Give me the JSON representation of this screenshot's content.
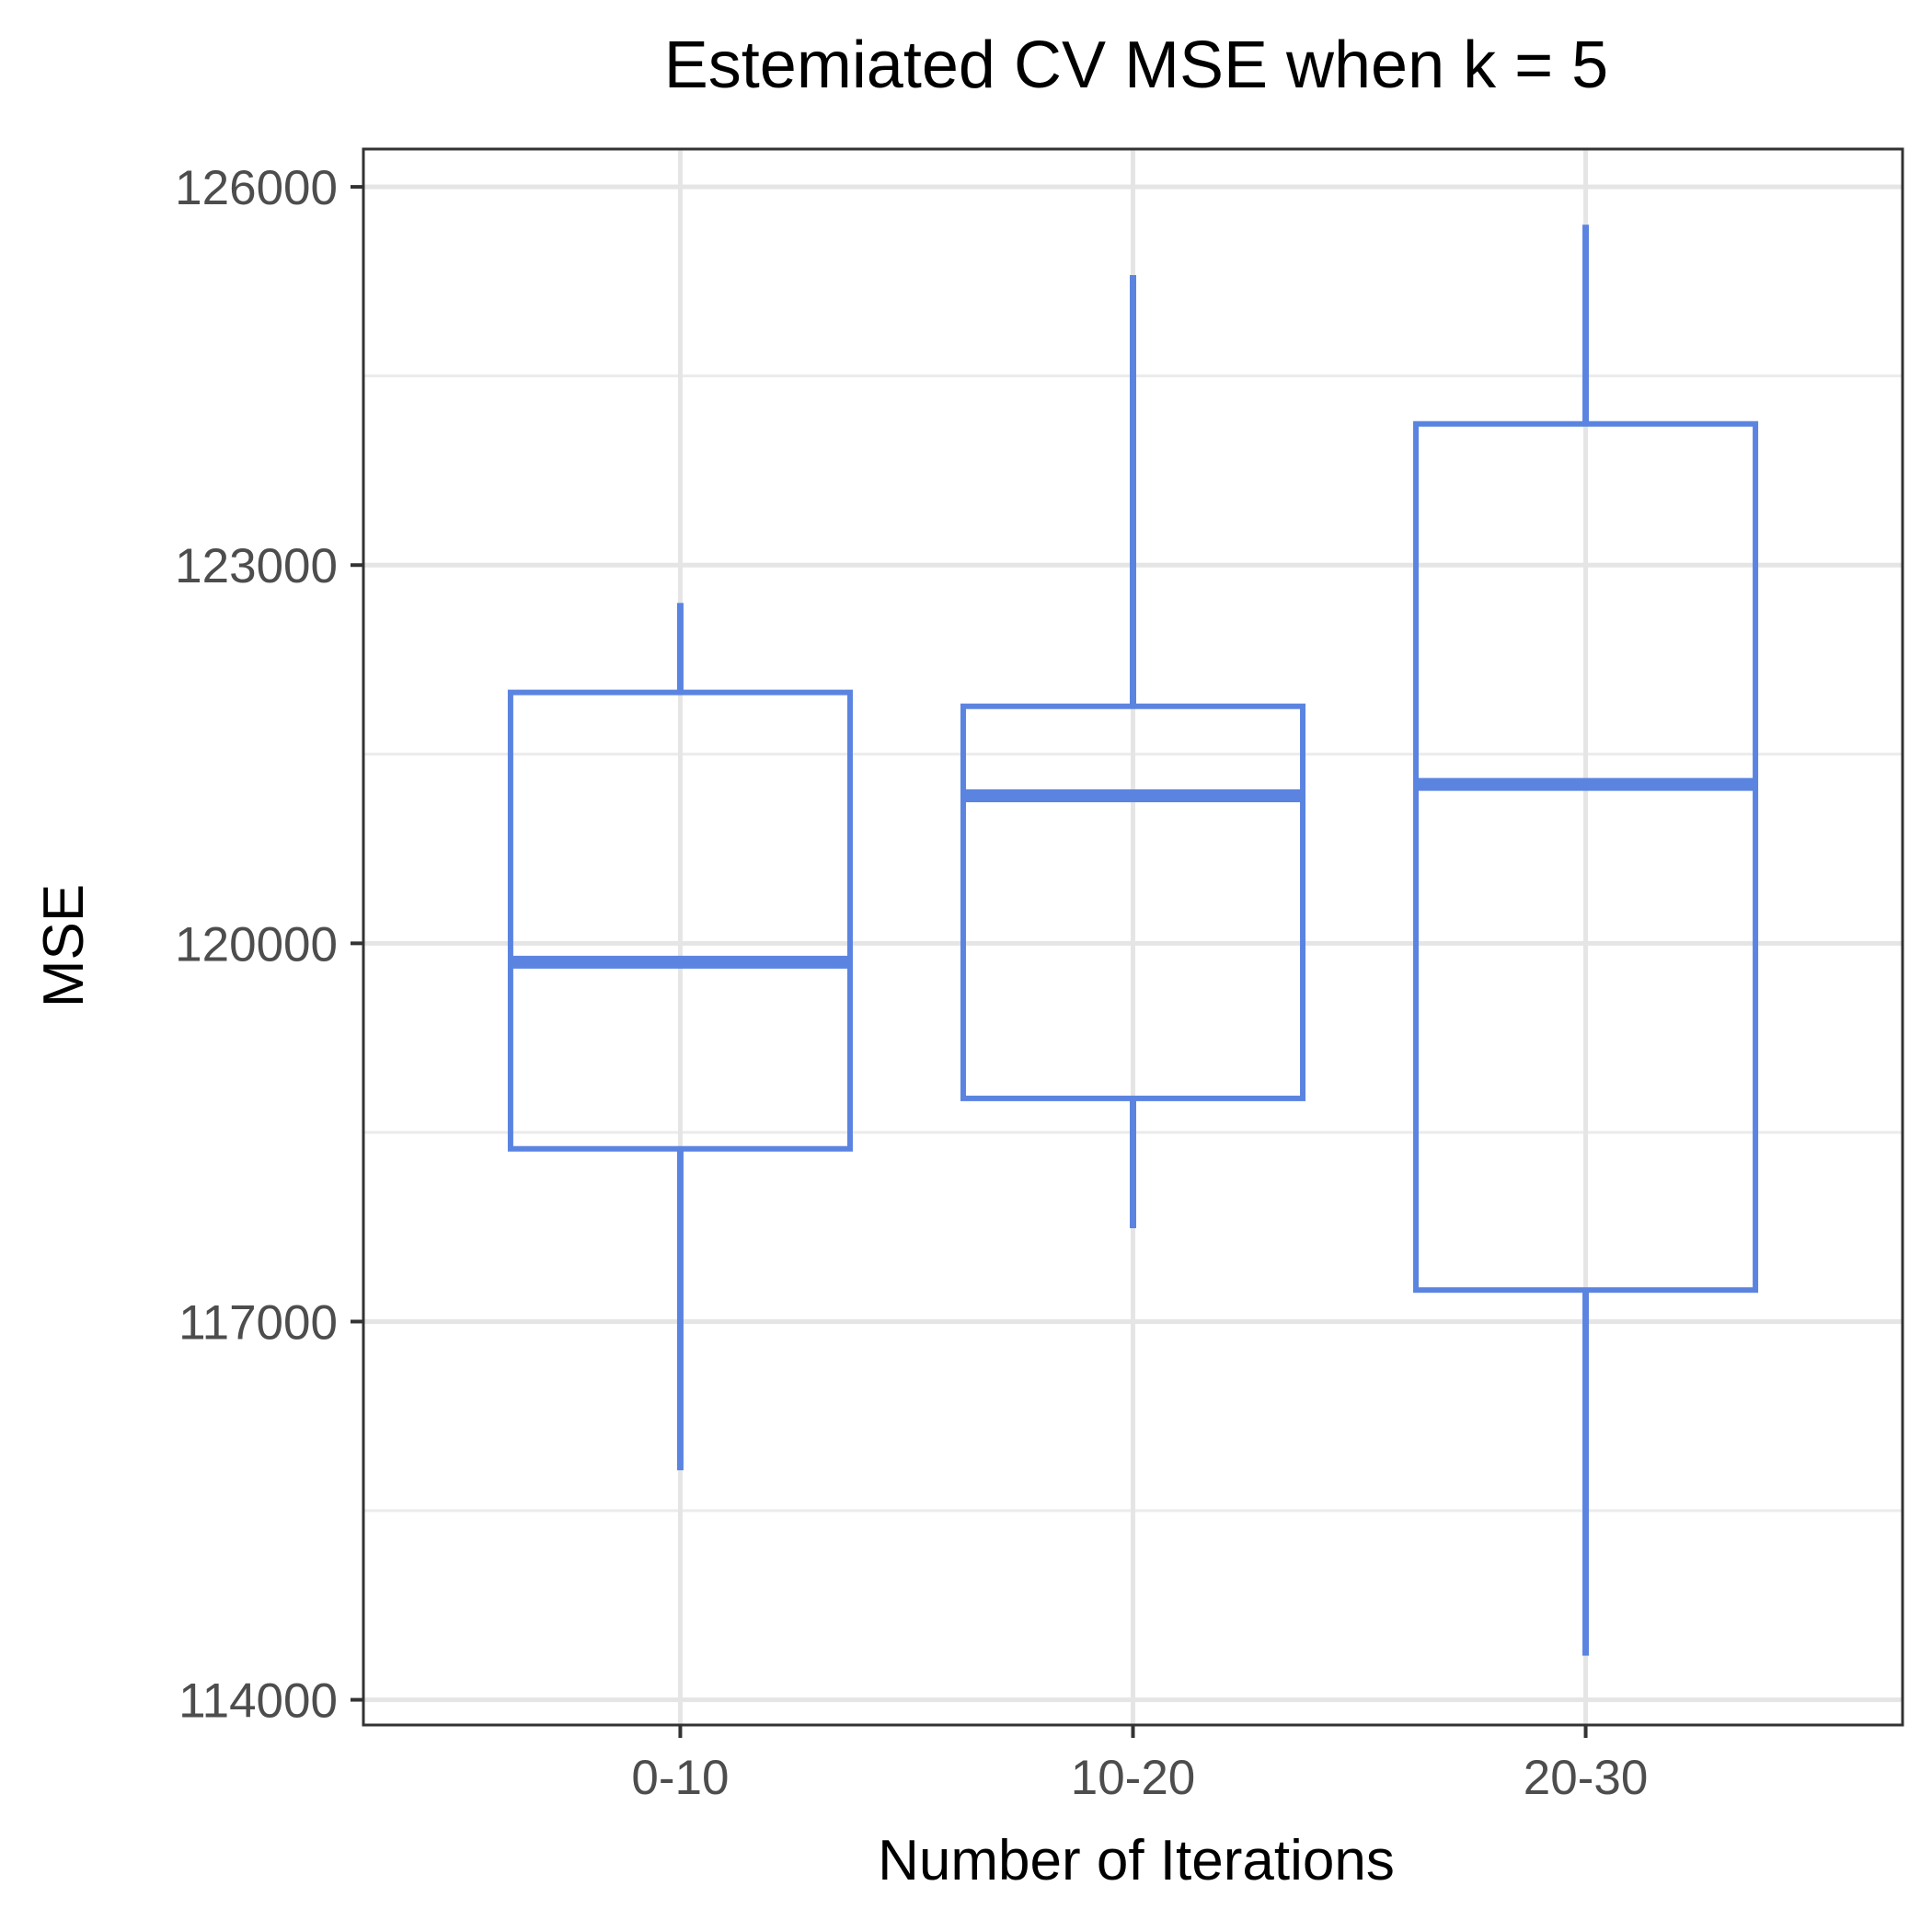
{
  "chart_data": {
    "type": "boxplot",
    "title": "Estemiated CV MSE when k = 5",
    "xlabel": "Number of Iterations",
    "ylabel": "MSE",
    "categories": [
      "0-10",
      "10-20",
      "20-30"
    ],
    "ylim": [
      113800,
      126300
    ],
    "yticks": [
      114000,
      117000,
      120000,
      123000,
      126000
    ],
    "yticks_minor": [
      115500,
      118500,
      121500,
      124500
    ],
    "grid": true,
    "box_color": "#5b84e1",
    "boxes": [
      {
        "category": "0-10",
        "whisker_low": 115820,
        "q1": 118370,
        "median": 119850,
        "q3": 121990,
        "whisker_high": 122700
      },
      {
        "category": "10-20",
        "whisker_low": 117740,
        "q1": 118770,
        "median": 121170,
        "q3": 121880,
        "whisker_high": 125300
      },
      {
        "category": "20-30",
        "whisker_low": 114350,
        "q1": 117250,
        "median": 121260,
        "q3": 124120,
        "whisker_high": 125700
      }
    ]
  }
}
